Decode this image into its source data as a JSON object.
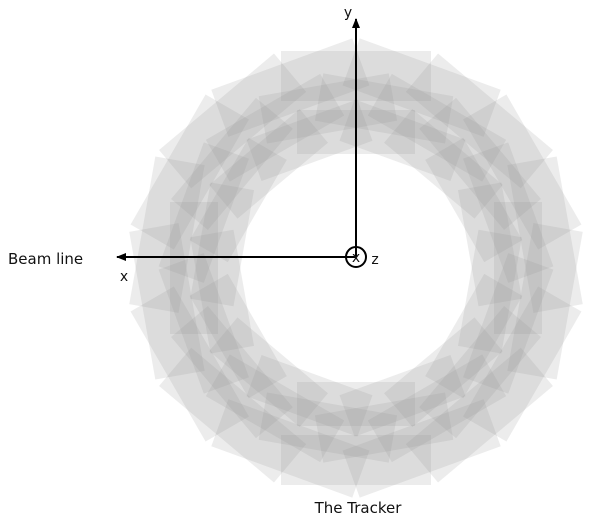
{
  "diagram": {
    "title": "The Tracker",
    "beam_label": "Beam line",
    "axes": {
      "x": "x",
      "y": "y",
      "z": "z"
    },
    "z_marker": "x",
    "module_count": 18,
    "colors": {
      "module_fill": "#8c8c8c",
      "axis_stroke": "#000000",
      "background": "#ffffff"
    }
  }
}
